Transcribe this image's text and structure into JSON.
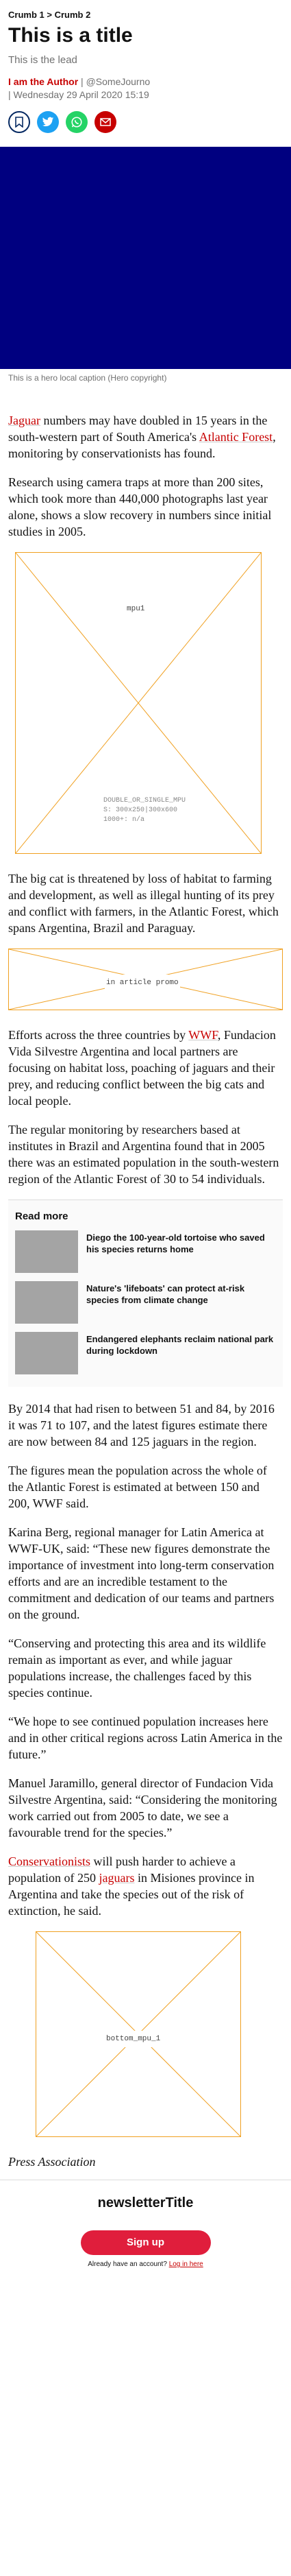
{
  "breadcrumb": {
    "items": [
      "Crumb 1",
      "Crumb 2"
    ],
    "separator": ">"
  },
  "article": {
    "title": "This is a title",
    "lead": "This is the lead",
    "author": "I am the Author",
    "handle": "@SomeJourno",
    "date": "Wednesday 29 April 2020 15:19",
    "share_icons": [
      "bookmark-icon",
      "twitter-icon",
      "whatsapp-icon",
      "email-icon"
    ],
    "hero_caption": "This is a hero local caption (Hero copyright)"
  },
  "colors": {
    "accent": "#c70000",
    "hero": "#000080",
    "button": "#e01e3c",
    "placeholder_line": "#f0a020"
  },
  "body": {
    "p1": {
      "l1": "Jaguar",
      "t1": " numbers may have doubled in 15 years in the south-western part of South America's ",
      "l2": "Atlantic Forest",
      "t2": ", monitoring by conservationists has found."
    },
    "p2": "Research using camera traps at more than 200 sites, which took more than 440,000 photographs last year alone, shows a slow recovery in numbers since initial studies in 2005.",
    "p3": "The big cat is threatened by loss of habitat to farming and development, as well as illegal hunting of its prey and conflict with farmers, in the Atlantic Forest, which spans Argentina, Brazil and Paraguay.",
    "p4": {
      "t1": "Efforts across the three countries by ",
      "l1": "WWF",
      "t2": ", Fundacion Vida Silvestre Argentina and local partners are focusing on habitat loss, poaching of jaguars and their prey, and reducing conflict between the big cats and local people."
    },
    "p5": "The regular monitoring by researchers based at institutes in Brazil and Argentina found that in 2005 there was an estimated population in the south-western region of the Atlantic Forest of 30 to 54 individuals.",
    "p6": "By 2014 that had risen to between 51 and 84, by 2016 it was 71 to 107, and the latest figures estimate there are now between 84 and 125 jaguars in the region.",
    "p7": "The figures mean the population across the whole of the Atlantic Forest is estimated at between 150 and 200, WWF said.",
    "p8": "Karina Berg, regional manager for Latin America at WWF-UK, said: “These new figures demonstrate the importance of investment into long-term conservation efforts and are an incredible testament to the commitment and dedication of our teams and partners on the ground.",
    "p9": "“Conserving and protecting this area and its wildlife remain as important as ever, and while jaguar populations increase, the challenges faced by this species continue.",
    "p10": "“We hope to see continued population increases here and in other critical regions across Latin America in the future.”",
    "p11": "Manuel Jaramillo, general director of Fundacion Vida Silvestre Argentina, said: “Considering the monitoring work carried out from 2005 to date, we see a favourable trend for the species.”",
    "p12": {
      "l1": "Conservationists",
      "t1": " will push harder to achieve a population of 250 ",
      "l2": "jaguars",
      "t2": " in Misiones province in Argentina and take the species out of the risk of extinction, he said."
    },
    "credit": "Press Association"
  },
  "ads": {
    "mpu1": {
      "label": "mpu1",
      "sub1": "DOUBLE_OR_SINGLE_MPU",
      "sub2": "S: 300x250|300x600",
      "sub3": "1000+: n/a"
    },
    "inarticle": {
      "label": "in article promo"
    },
    "bottom": {
      "label": "bottom_mpu_1"
    }
  },
  "read_more": {
    "heading": "Read more",
    "items": [
      "Diego the 100-year-old tortoise who saved his species returns home",
      "Nature's 'lifeboats' can protect at-risk species from climate change",
      "Endangered elephants reclaim national park during lockdown"
    ]
  },
  "newsletter": {
    "title": "newsletterTitle",
    "button": "Sign up",
    "login_prefix": "Already have an account?",
    "login_link": "Log in here"
  }
}
